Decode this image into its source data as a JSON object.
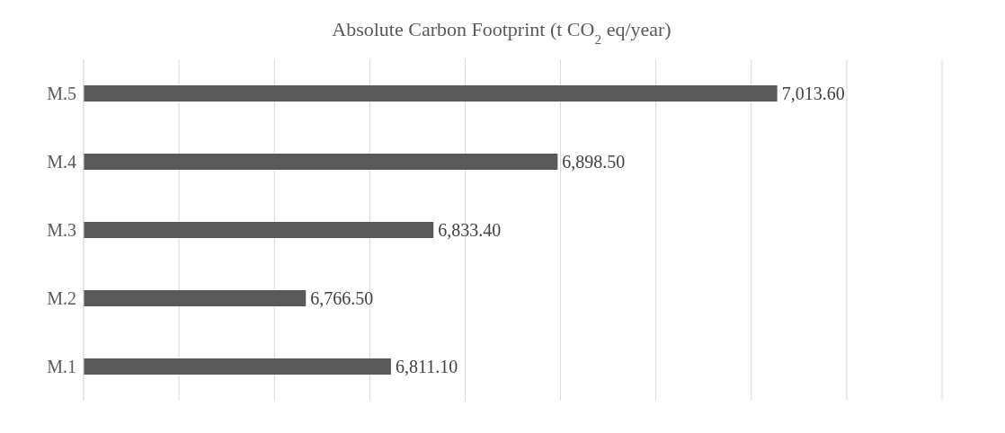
{
  "chart_data": {
    "type": "bar",
    "orientation": "horizontal",
    "title": "Absolute Carbon Footprint (t CO$_{2}$ eq/year)",
    "categories": [
      "M.5",
      "M.4",
      "M.3",
      "M.2",
      "M.1"
    ],
    "values": [
      7013.6,
      6898.5,
      6833.4,
      6766.5,
      6811.1
    ],
    "value_labels": [
      "7,013.60",
      "6,898.50",
      "6,833.40",
      "6,766.50",
      "6,811.10"
    ],
    "color": "#595959",
    "xlim": [
      6650,
      7100
    ],
    "xticks": [
      {
        "value": 6650,
        "label": null
      },
      {
        "value": 6700,
        "label": null
      },
      {
        "value": 6750,
        "label": null
      },
      {
        "value": 6800,
        "label": null
      },
      {
        "value": 6850,
        "label": null
      },
      {
        "value": 6900,
        "label": null
      },
      {
        "value": 6950,
        "label": null
      },
      {
        "value": 7000,
        "label": null
      },
      {
        "value": 7050,
        "label": null
      },
      {
        "value": 7100,
        "label": null
      }
    ],
    "grid": "x",
    "tick_labels": "y",
    "legend": false
  }
}
